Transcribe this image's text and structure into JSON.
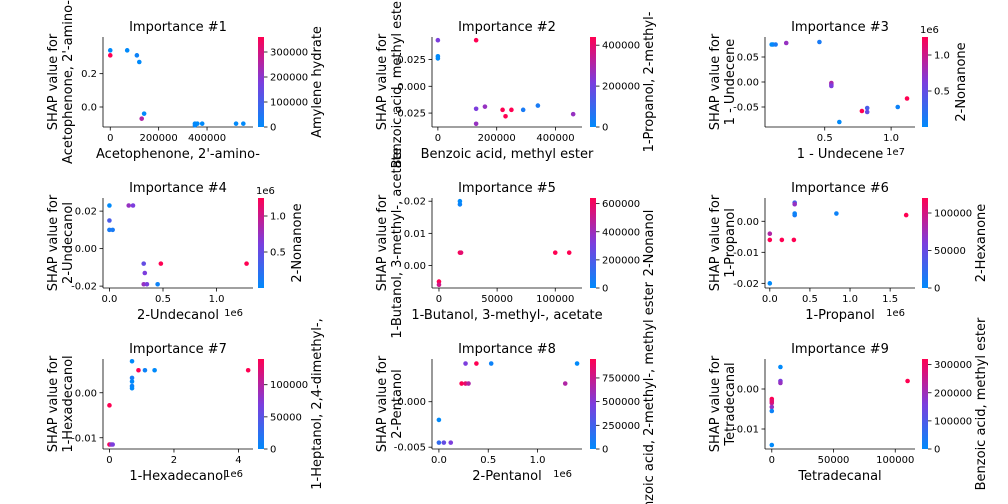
{
  "colormap": {
    "low": "#008afb",
    "mid": "#7c3ddd",
    "high": "#ff0052"
  },
  "chart_data": [
    {
      "type": "scatter",
      "title": "Importance #1",
      "xlabel": "Acetophenone, 2'-amino-",
      "ylabel": [
        "SHAP value for",
        "Acetophenone, 2'-amino-"
      ],
      "clabel": "Amylene hydrate",
      "xlim": [
        -30000,
        590000
      ],
      "ylim": [
        -0.12,
        0.42
      ],
      "xticks": [
        {
          "v": 0,
          "l": "0"
        },
        {
          "v": 200000,
          "l": "200000"
        },
        {
          "v": 400000,
          "l": "400000"
        }
      ],
      "yticks": [
        {
          "v": 0.0,
          "l": "0.0"
        },
        {
          "v": 0.2,
          "l": "0.2"
        }
      ],
      "xexp": "",
      "cmin": 0,
      "cmax": 360000,
      "cticks": [
        {
          "v": 0,
          "l": "0"
        },
        {
          "v": 100000,
          "l": "100000"
        },
        {
          "v": 200000,
          "l": "200000"
        },
        {
          "v": 300000,
          "l": "300000"
        }
      ],
      "cexp": "",
      "points": [
        [
          0,
          0.34,
          0
        ],
        [
          0,
          0.31,
          1
        ],
        [
          70000,
          0.34,
          0
        ],
        [
          110000,
          0.31,
          0.05
        ],
        [
          120000,
          0.27,
          0
        ],
        [
          140000,
          -0.04,
          0
        ],
        [
          130000,
          -0.07,
          0.7
        ],
        [
          350000,
          -0.1,
          0
        ],
        [
          350000,
          -0.11,
          0.02
        ],
        [
          360000,
          -0.1,
          0
        ],
        [
          380000,
          -0.1,
          0
        ],
        [
          520000,
          -0.1,
          0
        ],
        [
          550000,
          -0.1,
          0
        ]
      ]
    },
    {
      "type": "scatter",
      "title": "Importance #2",
      "xlabel": "Benzoic acid, methyl ester",
      "ylabel": [
        "SHAP value for",
        "Benzoic acid, methyl ester"
      ],
      "clabel": "1-Propanol, 2-methyl-",
      "xlim": [
        -20000,
        490000
      ],
      "ylim": [
        -0.038,
        0.046
      ],
      "xticks": [
        {
          "v": 0,
          "l": "0"
        },
        {
          "v": 200000,
          "l": "200000"
        },
        {
          "v": 400000,
          "l": "400000"
        }
      ],
      "yticks": [
        {
          "v": 0.025,
          "l": "0.025"
        },
        {
          "v": 0.0,
          "l": "0.000"
        },
        {
          "v": -0.025,
          "l": "-0.025"
        }
      ],
      "xexp": "",
      "cmin": 0,
      "cmax": 440000,
      "cticks": [
        {
          "v": 0,
          "l": "0"
        },
        {
          "v": 200000,
          "l": "200000"
        },
        {
          "v": 400000,
          "l": "400000"
        }
      ],
      "cexp": "",
      "points": [
        [
          0,
          0.043,
          0.5
        ],
        [
          0,
          0.028,
          0
        ],
        [
          0,
          0.026,
          0
        ],
        [
          130000,
          0.043,
          1
        ],
        [
          130000,
          -0.021,
          0.5
        ],
        [
          130000,
          -0.035,
          0.6
        ],
        [
          160000,
          -0.019,
          0.6
        ],
        [
          220000,
          -0.022,
          1
        ],
        [
          230000,
          -0.028,
          1
        ],
        [
          250000,
          -0.022,
          1
        ],
        [
          290000,
          -0.022,
          0.1
        ],
        [
          340000,
          -0.018,
          0.1
        ],
        [
          460000,
          -0.026,
          0.6
        ]
      ]
    },
    {
      "type": "scatter",
      "title": "Importance #3",
      "xlabel": "1 - Undecene",
      "ylabel": [
        "SHAP value for",
        "1 - Undecene"
      ],
      "clabel": "2-Nonanone",
      "xlim": [
        500000,
        11800000
      ],
      "ylim": [
        -0.09,
        0.09
      ],
      "xticks": [
        {
          "v": 5000000,
          "l": "0.5"
        },
        {
          "v": 10000000,
          "l": "1.0"
        }
      ],
      "yticks": [
        {
          "v": 0.05,
          "l": "0.05"
        },
        {
          "v": 0.0,
          "l": "0.00"
        },
        {
          "v": -0.05,
          "l": "-0.05"
        }
      ],
      "xexp": "1e7",
      "cmin": 0,
      "cmax": 1250000,
      "cticks": [
        {
          "v": 500000,
          "l": "0.5"
        },
        {
          "v": 1000000,
          "l": "1.0"
        }
      ],
      "cexp": "1e6",
      "points": [
        [
          1000000,
          0.075,
          0
        ],
        [
          1100000,
          0.075,
          0
        ],
        [
          1300000,
          0.075,
          0.1
        ],
        [
          2100000,
          0.078,
          0.6
        ],
        [
          4600000,
          0.08,
          0.1
        ],
        [
          5500000,
          -0.002,
          0.7
        ],
        [
          5500000,
          -0.005,
          0.6
        ],
        [
          5500000,
          -0.008,
          0.5
        ],
        [
          6100000,
          -0.08,
          0
        ],
        [
          7800000,
          -0.058,
          1
        ],
        [
          8200000,
          -0.052,
          0.3
        ],
        [
          8200000,
          -0.06,
          0.4
        ],
        [
          10500000,
          -0.05,
          0.05
        ],
        [
          11200000,
          -0.033,
          1
        ]
      ]
    },
    {
      "type": "scatter",
      "title": "Importance #4",
      "xlabel": "2-Undecanol",
      "ylabel": [
        "SHAP value for",
        "2-Undecanol"
      ],
      "clabel": "2-Nonanone",
      "xlim": [
        -60000,
        1340000
      ],
      "ylim": [
        -0.021,
        0.027
      ],
      "xticks": [
        {
          "v": 0,
          "l": "0.0"
        },
        {
          "v": 500000,
          "l": "0.5"
        },
        {
          "v": 1000000,
          "l": "1.0"
        }
      ],
      "yticks": [
        {
          "v": 0.02,
          "l": "0.02"
        },
        {
          "v": 0.0,
          "l": "0.00"
        },
        {
          "v": -0.02,
          "l": "-0.02"
        }
      ],
      "xexp": "1e6",
      "cmin": 0,
      "cmax": 1250000,
      "cticks": [
        {
          "v": 500000,
          "l": "0.5"
        },
        {
          "v": 1000000,
          "l": "1.0"
        }
      ],
      "cexp": "1e6",
      "points": [
        [
          0,
          0.023,
          0
        ],
        [
          0,
          0.015,
          0.3
        ],
        [
          0,
          0.01,
          0.1
        ],
        [
          30000,
          0.01,
          0.1
        ],
        [
          180000,
          0.023,
          0.6
        ],
        [
          220000,
          0.023,
          0.5
        ],
        [
          320000,
          -0.008,
          0.4
        ],
        [
          330000,
          -0.013,
          0.5
        ],
        [
          320000,
          -0.019,
          0.6
        ],
        [
          350000,
          -0.019,
          0.5
        ],
        [
          450000,
          -0.019,
          0.05
        ],
        [
          480000,
          -0.008,
          1
        ],
        [
          1280000,
          -0.008,
          1
        ]
      ]
    },
    {
      "type": "scatter",
      "title": "Importance #5",
      "xlabel": "1-Butanol, 3-methyl-, acetate",
      "ylabel": [
        "SHAP value for",
        "1-Butanol, 3-methyl-, acetate"
      ],
      "clabel": "2-Nonanol",
      "xlim": [
        -6000,
        123000
      ],
      "ylim": [
        -0.007,
        0.021
      ],
      "xticks": [
        {
          "v": 0,
          "l": "0"
        },
        {
          "v": 50000,
          "l": "50000"
        },
        {
          "v": 100000,
          "l": "100000"
        }
      ],
      "yticks": [
        {
          "v": 0.02,
          "l": "0.02"
        },
        {
          "v": 0.01,
          "l": "0.01"
        },
        {
          "v": 0.0,
          "l": "0.00"
        }
      ],
      "xexp": "",
      "cmin": 0,
      "cmax": 640000,
      "cticks": [
        {
          "v": 0,
          "l": "0"
        },
        {
          "v": 200000,
          "l": "200000"
        },
        {
          "v": 400000,
          "l": "400000"
        },
        {
          "v": 600000,
          "l": "600000"
        }
      ],
      "cexp": "",
      "points": [
        [
          0,
          -0.005,
          1
        ],
        [
          0,
          -0.006,
          0.8
        ],
        [
          18000,
          0.019,
          0.05
        ],
        [
          18000,
          0.02,
          0
        ],
        [
          18000,
          0.004,
          1
        ],
        [
          19000,
          0.004,
          0.9
        ],
        [
          100000,
          0.004,
          1
        ],
        [
          112000,
          0.004,
          1
        ]
      ]
    },
    {
      "type": "scatter",
      "title": "Importance #6",
      "xlabel": "1-Propanol",
      "ylabel": [
        "SHAP value for",
        "1-Propanol"
      ],
      "clabel": "2-Hexanone",
      "xlim": [
        -60000,
        1810000
      ],
      "ylim": [
        -0.0215,
        0.0075
      ],
      "xticks": [
        {
          "v": 0,
          "l": "0.0"
        },
        {
          "v": 500000,
          "l": "0.5"
        },
        {
          "v": 1000000,
          "l": "1.0"
        },
        {
          "v": 1500000,
          "l": "1.5"
        }
      ],
      "yticks": [
        {
          "v": 0.0,
          "l": "0.00"
        },
        {
          "v": -0.01,
          "l": "-0.01"
        },
        {
          "v": -0.02,
          "l": "-0.02"
        }
      ],
      "xexp": "1e6",
      "cmin": 0,
      "cmax": 120000,
      "cticks": [
        {
          "v": 0,
          "l": "0"
        },
        {
          "v": 50000,
          "l": "50000"
        },
        {
          "v": 100000,
          "l": "100000"
        }
      ],
      "cexp": "",
      "points": [
        [
          0,
          -0.02,
          0
        ],
        [
          0,
          -0.004,
          0.7
        ],
        [
          0,
          -0.006,
          1
        ],
        [
          150000,
          -0.006,
          1
        ],
        [
          300000,
          -0.006,
          1
        ],
        [
          310000,
          0.006,
          0.3
        ],
        [
          310000,
          0.0055,
          0.6
        ],
        [
          310000,
          0.002,
          0.1
        ],
        [
          310000,
          0.0025,
          0.05
        ],
        [
          830000,
          0.0025,
          0.05
        ],
        [
          1700000,
          0.002,
          1
        ]
      ]
    },
    {
      "type": "scatter",
      "title": "Importance #7",
      "xlabel": "1-Hexadecanol",
      "ylabel": [
        "SHAP value for",
        "1-Hexadecanol"
      ],
      "clabel": "1-Heptanol, 2,4-dimethyl-,",
      "xlim": [
        -200000,
        4450000
      ],
      "ylim": [
        -0.0125,
        0.0075
      ],
      "xticks": [
        {
          "v": 0,
          "l": "0"
        },
        {
          "v": 2000000,
          "l": "2"
        },
        {
          "v": 4000000,
          "l": "4"
        }
      ],
      "yticks": [
        {
          "v": 0.0,
          "l": "0.00"
        },
        {
          "v": -0.01,
          "l": "-0.01"
        }
      ],
      "xexp": "1e6",
      "cmin": 0,
      "cmax": 140000,
      "cticks": [
        {
          "v": 0,
          "l": "0"
        },
        {
          "v": 50000,
          "l": "50000"
        },
        {
          "v": 100000,
          "l": "100000"
        }
      ],
      "cexp": "",
      "points": [
        [
          0,
          -0.0115,
          1
        ],
        [
          50000,
          -0.0115,
          0.6
        ],
        [
          100000,
          -0.0115,
          0.5
        ],
        [
          0,
          -0.0028,
          1
        ],
        [
          700000,
          0.007,
          0
        ],
        [
          700000,
          0.0033,
          0.1
        ],
        [
          700000,
          0.0025,
          0
        ],
        [
          700000,
          0.0015,
          0.05
        ],
        [
          700000,
          0.001,
          0
        ],
        [
          900000,
          0.005,
          1
        ],
        [
          1100000,
          0.005,
          0.05
        ],
        [
          1400000,
          0.005,
          0
        ],
        [
          4300000,
          0.005,
          1
        ]
      ]
    },
    {
      "type": "scatter",
      "title": "Importance #8",
      "xlabel": "2-Pentanol",
      "ylabel": [
        "SHAP value for",
        "2-Pentanol"
      ],
      "clabel": "Benzoic acid, 2-methyl-, methyl ester",
      "xlim": [
        -70000,
        1450000
      ],
      "ylim": [
        -0.0052,
        0.0047
      ],
      "xticks": [
        {
          "v": 0,
          "l": "0.0"
        },
        {
          "v": 500000,
          "l": "0.5"
        },
        {
          "v": 1000000,
          "l": "1.0"
        }
      ],
      "yticks": [
        {
          "v": 0.0,
          "l": "0.000"
        },
        {
          "v": -0.005,
          "l": "-0.005"
        }
      ],
      "xexp": "1e6",
      "cmin": 0,
      "cmax": 950000,
      "cticks": [
        {
          "v": 0,
          "l": "0"
        },
        {
          "v": 250000,
          "l": "250000"
        },
        {
          "v": 500000,
          "l": "500000"
        },
        {
          "v": 750000,
          "l": "750000"
        }
      ],
      "cexp": "",
      "points": [
        [
          0,
          -0.002,
          0
        ],
        [
          0,
          -0.0045,
          0.2
        ],
        [
          50000,
          -0.0045,
          0.4
        ],
        [
          120000,
          -0.0045,
          0.5
        ],
        [
          230000,
          0.002,
          1
        ],
        [
          270000,
          0.002,
          0.9
        ],
        [
          300000,
          0.002,
          0.7
        ],
        [
          270000,
          0.0042,
          0.5
        ],
        [
          380000,
          0.0042,
          1
        ],
        [
          530000,
          0.0042,
          0.05
        ],
        [
          1280000,
          0.002,
          0.7
        ],
        [
          1400000,
          0.0042,
          0
        ]
      ]
    },
    {
      "type": "scatter",
      "title": "Importance #9",
      "xlabel": "Tetradecanal",
      "ylabel": [
        "SHAP value for",
        "Tetradecanal"
      ],
      "clabel": "Benzoic acid, methyl ester",
      "xlim": [
        -5500,
        116000
      ],
      "ylim": [
        -0.015,
        0.0075
      ],
      "xticks": [
        {
          "v": 0,
          "l": "0"
        },
        {
          "v": 50000,
          "l": "50000"
        },
        {
          "v": 100000,
          "l": "100000"
        }
      ],
      "yticks": [
        {
          "v": 0.0,
          "l": "0.00"
        },
        {
          "v": -0.01,
          "l": "-0.01"
        }
      ],
      "xexp": "",
      "cmin": 0,
      "cmax": 320000,
      "cticks": [
        {
          "v": 0,
          "l": "0"
        },
        {
          "v": 100000,
          "l": "100000"
        },
        {
          "v": 200000,
          "l": "200000"
        },
        {
          "v": 300000,
          "l": "300000"
        }
      ],
      "cexp": "",
      "points": [
        [
          0,
          -0.0025,
          1
        ],
        [
          0,
          -0.0035,
          0.8
        ],
        [
          0,
          -0.0045,
          0.6
        ],
        [
          0,
          -0.0055,
          0.05
        ],
        [
          0,
          -0.014,
          0
        ],
        [
          0,
          -0.003,
          0.9
        ],
        [
          7000,
          0.0055,
          0
        ],
        [
          7000,
          0.002,
          0.5
        ],
        [
          7000,
          0.0015,
          0.6
        ],
        [
          110000,
          0.002,
          1
        ]
      ]
    }
  ]
}
